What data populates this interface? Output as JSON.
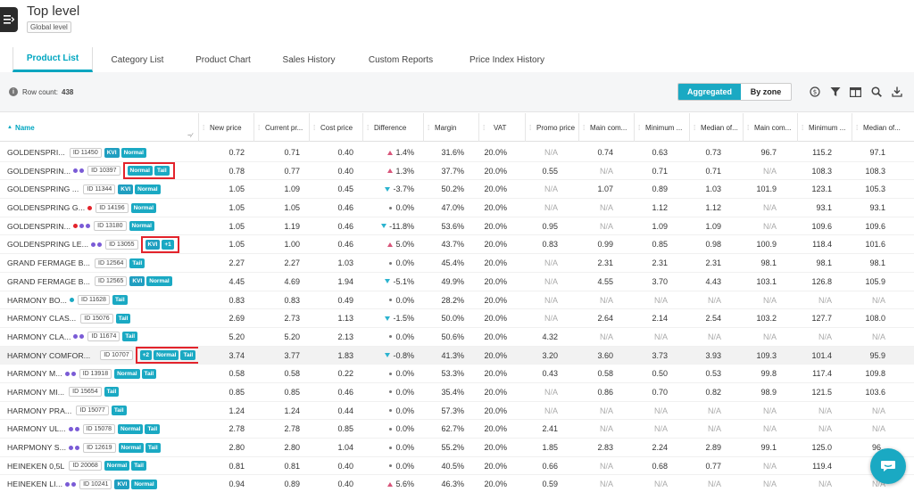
{
  "header": {
    "title": "Top level",
    "subtitle": "Global level"
  },
  "tabs": [
    {
      "label": "Product List",
      "active": true
    },
    {
      "label": "Category List"
    },
    {
      "label": "Product Chart"
    },
    {
      "label": "Sales History"
    },
    {
      "label": "Custom Reports"
    },
    {
      "label": "Price Index History"
    }
  ],
  "toolbar": {
    "row_count_label": "Row count:",
    "row_count": "438",
    "view_toggle": {
      "active": "Aggregated",
      "inactive": "By zone"
    },
    "icons": [
      "currency-icon",
      "filter-icon",
      "columns-icon",
      "search-icon",
      "download-icon"
    ]
  },
  "columns": [
    "Name",
    "New price",
    "Current pr...",
    "Cost price",
    "Difference",
    "Margin",
    "VAT",
    "Promo price",
    "Main com...",
    "Minimum ...",
    "Median of...",
    "Main com...",
    "Minimum ...",
    "Median of..."
  ],
  "colors": {
    "accent": "#1aa9c3",
    "highlight_box": "#e3232b",
    "up": "#d8557a",
    "down": "#2bb3cf",
    "dot_red": "#e3232b",
    "dot_purple": "#7a5bd6",
    "dot_teal": "#1aa9c3"
  },
  "rows": [
    {
      "name": "GOLDENSPRI...",
      "dots": [],
      "id": "ID 11450",
      "badges": [
        "KVI",
        "Normal"
      ],
      "boxed": false,
      "new": "0.72",
      "cur": "0.71",
      "cost": "0.40",
      "diff_dir": "up",
      "diff": "1.4%",
      "margin": "31.6%",
      "vat": "20.0%",
      "promo": "N/A",
      "c1": "0.74",
      "c2": "0.63",
      "c3": "0.73",
      "c4": "96.7",
      "c5": "115.2",
      "c6": "97.1"
    },
    {
      "name": "GOLDENSPRIN...",
      "dots": [
        "purple",
        "purple"
      ],
      "id": "ID 10397",
      "badges": [
        "Normal",
        "Tail"
      ],
      "boxed": true,
      "new": "0.78",
      "cur": "0.77",
      "cost": "0.40",
      "diff_dir": "up",
      "diff": "1.3%",
      "margin": "37.7%",
      "vat": "20.0%",
      "promo": "0.55",
      "c1": "N/A",
      "c2": "0.71",
      "c3": "0.71",
      "c4": "N/A",
      "c5": "108.3",
      "c6": "108.3"
    },
    {
      "name": "GOLDENSPRING ...",
      "dots": [],
      "id": "ID 11344",
      "badges": [
        "KVI",
        "Normal"
      ],
      "boxed": false,
      "new": "1.05",
      "cur": "1.09",
      "cost": "0.45",
      "diff_dir": "down",
      "diff": "-3.7%",
      "margin": "50.2%",
      "vat": "20.0%",
      "promo": "N/A",
      "c1": "1.07",
      "c2": "0.89",
      "c3": "1.03",
      "c4": "101.9",
      "c5": "123.1",
      "c6": "105.3"
    },
    {
      "name": "GOLDENSPRING G...",
      "dots": [
        "red"
      ],
      "id": "ID 14196",
      "badges": [
        "Normal"
      ],
      "boxed": false,
      "new": "1.05",
      "cur": "1.05",
      "cost": "0.46",
      "diff_dir": "zero",
      "diff": "0.0%",
      "margin": "47.0%",
      "vat": "20.0%",
      "promo": "N/A",
      "c1": "N/A",
      "c2": "1.12",
      "c3": "1.12",
      "c4": "N/A",
      "c5": "93.1",
      "c6": "93.1"
    },
    {
      "name": "GOLDENSPRIN...",
      "dots": [
        "red",
        "purple",
        "purple"
      ],
      "id": "ID 13180",
      "badges": [
        "Normal"
      ],
      "boxed": false,
      "new": "1.05",
      "cur": "1.19",
      "cost": "0.46",
      "diff_dir": "down",
      "diff": "-11.8%",
      "margin": "53.6%",
      "vat": "20.0%",
      "promo": "0.95",
      "c1": "N/A",
      "c2": "1.09",
      "c3": "1.09",
      "c4": "N/A",
      "c5": "109.6",
      "c6": "109.6"
    },
    {
      "name": "GOLDENSPRING LE...",
      "dots": [
        "purple",
        "purple"
      ],
      "id": "ID 13055",
      "badges": [
        "KVI",
        "+1"
      ],
      "boxed": true,
      "new": "1.05",
      "cur": "1.00",
      "cost": "0.46",
      "diff_dir": "up",
      "diff": "5.0%",
      "margin": "43.7%",
      "vat": "20.0%",
      "promo": "0.83",
      "c1": "0.99",
      "c2": "0.85",
      "c3": "0.98",
      "c4": "100.9",
      "c5": "118.4",
      "c6": "101.6"
    },
    {
      "name": "GRAND FERMAGE B...",
      "dots": [],
      "id": "ID 12564",
      "badges": [
        "Tail"
      ],
      "boxed": false,
      "new": "2.27",
      "cur": "2.27",
      "cost": "1.03",
      "diff_dir": "zero",
      "diff": "0.0%",
      "margin": "45.4%",
      "vat": "20.0%",
      "promo": "N/A",
      "c1": "2.31",
      "c2": "2.31",
      "c3": "2.31",
      "c4": "98.1",
      "c5": "98.1",
      "c6": "98.1"
    },
    {
      "name": "GRAND FERMAGE B...",
      "dots": [],
      "id": "ID 12565",
      "badges": [
        "KVI",
        "Normal"
      ],
      "boxed": false,
      "new": "4.45",
      "cur": "4.69",
      "cost": "1.94",
      "diff_dir": "down",
      "diff": "-5.1%",
      "margin": "49.9%",
      "vat": "20.0%",
      "promo": "N/A",
      "c1": "4.55",
      "c2": "3.70",
      "c3": "4.43",
      "c4": "103.1",
      "c5": "126.8",
      "c6": "105.9"
    },
    {
      "name": "HARMONY BO...",
      "dots": [
        "teal"
      ],
      "id": "ID 11628",
      "badges": [
        "Tail"
      ],
      "boxed": false,
      "new": "0.83",
      "cur": "0.83",
      "cost": "0.49",
      "diff_dir": "zero",
      "diff": "0.0%",
      "margin": "28.2%",
      "vat": "20.0%",
      "promo": "N/A",
      "c1": "N/A",
      "c2": "N/A",
      "c3": "N/A",
      "c4": "N/A",
      "c5": "N/A",
      "c6": "N/A"
    },
    {
      "name": "HARMONY CLAS...",
      "dots": [],
      "id": "ID 15076",
      "badges": [
        "Tail"
      ],
      "boxed": false,
      "new": "2.69",
      "cur": "2.73",
      "cost": "1.13",
      "diff_dir": "down",
      "diff": "-1.5%",
      "margin": "50.0%",
      "vat": "20.0%",
      "promo": "N/A",
      "c1": "2.64",
      "c2": "2.14",
      "c3": "2.54",
      "c4": "103.2",
      "c5": "127.7",
      "c6": "108.0"
    },
    {
      "name": "HARMONY CLA...",
      "dots": [
        "purple",
        "purple"
      ],
      "id": "ID 11674",
      "badges": [
        "Tail"
      ],
      "boxed": false,
      "new": "5.20",
      "cur": "5.20",
      "cost": "2.13",
      "diff_dir": "zero",
      "diff": "0.0%",
      "margin": "50.6%",
      "vat": "20.0%",
      "promo": "4.32",
      "c1": "N/A",
      "c2": "N/A",
      "c3": "N/A",
      "c4": "N/A",
      "c5": "N/A",
      "c6": "N/A"
    },
    {
      "name": "HARMONY COMFOR...",
      "dots": [
        "red",
        "purple",
        "purple"
      ],
      "id": "ID 10707",
      "badges": [
        "+2",
        "Normal",
        "Tail"
      ],
      "boxed": true,
      "highlight": true,
      "new": "3.74",
      "cur": "3.77",
      "cost": "1.83",
      "diff_dir": "down",
      "diff": "-0.8%",
      "margin": "41.3%",
      "vat": "20.0%",
      "promo": "3.20",
      "c1": "3.60",
      "c2": "3.73",
      "c3": "3.93",
      "c4": "109.3",
      "c5": "101.4",
      "c6": "95.9"
    },
    {
      "name": "HARMONY M...",
      "dots": [
        "purple",
        "purple"
      ],
      "id": "ID 13918",
      "badges": [
        "Normal",
        "Tail"
      ],
      "boxed": false,
      "new": "0.58",
      "cur": "0.58",
      "cost": "0.22",
      "diff_dir": "zero",
      "diff": "0.0%",
      "margin": "53.3%",
      "vat": "20.0%",
      "promo": "0.43",
      "c1": "0.58",
      "c2": "0.50",
      "c3": "0.53",
      "c4": "99.8",
      "c5": "117.4",
      "c6": "109.8"
    },
    {
      "name": "HARMONY MI...",
      "dots": [],
      "id": "ID 15654",
      "badges": [
        "Tail"
      ],
      "boxed": false,
      "new": "0.85",
      "cur": "0.85",
      "cost": "0.46",
      "diff_dir": "zero",
      "diff": "0.0%",
      "margin": "35.4%",
      "vat": "20.0%",
      "promo": "N/A",
      "c1": "0.86",
      "c2": "0.70",
      "c3": "0.82",
      "c4": "98.9",
      "c5": "121.5",
      "c6": "103.6"
    },
    {
      "name": "HARMONY PRA...",
      "dots": [],
      "id": "ID 15077",
      "badges": [
        "Tail"
      ],
      "boxed": false,
      "new": "1.24",
      "cur": "1.24",
      "cost": "0.44",
      "diff_dir": "zero",
      "diff": "0.0%",
      "margin": "57.3%",
      "vat": "20.0%",
      "promo": "N/A",
      "c1": "N/A",
      "c2": "N/A",
      "c3": "N/A",
      "c4": "N/A",
      "c5": "N/A",
      "c6": "N/A"
    },
    {
      "name": "HARMONY UL...",
      "dots": [
        "purple",
        "purple"
      ],
      "id": "ID 15078",
      "badges": [
        "Normal",
        "Tail"
      ],
      "boxed": false,
      "new": "2.78",
      "cur": "2.78",
      "cost": "0.85",
      "diff_dir": "zero",
      "diff": "0.0%",
      "margin": "62.7%",
      "vat": "20.0%",
      "promo": "2.41",
      "c1": "N/A",
      "c2": "N/A",
      "c3": "N/A",
      "c4": "N/A",
      "c5": "N/A",
      "c6": "N/A"
    },
    {
      "name": "HARPMONY S...",
      "dots": [
        "purple",
        "purple"
      ],
      "id": "ID 12619",
      "badges": [
        "Normal",
        "Tail"
      ],
      "boxed": false,
      "new": "2.80",
      "cur": "2.80",
      "cost": "1.04",
      "diff_dir": "zero",
      "diff": "0.0%",
      "margin": "55.2%",
      "vat": "20.0%",
      "promo": "1.85",
      "c1": "2.83",
      "c2": "2.24",
      "c3": "2.89",
      "c4": "99.1",
      "c5": "125.0",
      "c6": "96.."
    },
    {
      "name": "HEINEKEN 0,5L",
      "dots": [],
      "id": "ID 20068",
      "badges": [
        "Normal",
        "Tail"
      ],
      "boxed": false,
      "new": "0.81",
      "cur": "0.81",
      "cost": "0.40",
      "diff_dir": "zero",
      "diff": "0.0%",
      "margin": "40.5%",
      "vat": "20.0%",
      "promo": "0.66",
      "c1": "N/A",
      "c2": "0.68",
      "c3": "0.77",
      "c4": "N/A",
      "c5": "119.4",
      "c6": "1..."
    },
    {
      "name": "HEINEKEN LI...",
      "dots": [
        "purple",
        "purple"
      ],
      "id": "ID 10241",
      "badges": [
        "KVI",
        "Normal"
      ],
      "boxed": false,
      "new": "0.94",
      "cur": "0.89",
      "cost": "0.40",
      "diff_dir": "up",
      "diff": "5.6%",
      "margin": "46.3%",
      "vat": "20.0%",
      "promo": "0.59",
      "c1": "N/A",
      "c2": "N/A",
      "c3": "N/A",
      "c4": "N/A",
      "c5": "N/A",
      "c6": "N/A"
    }
  ]
}
